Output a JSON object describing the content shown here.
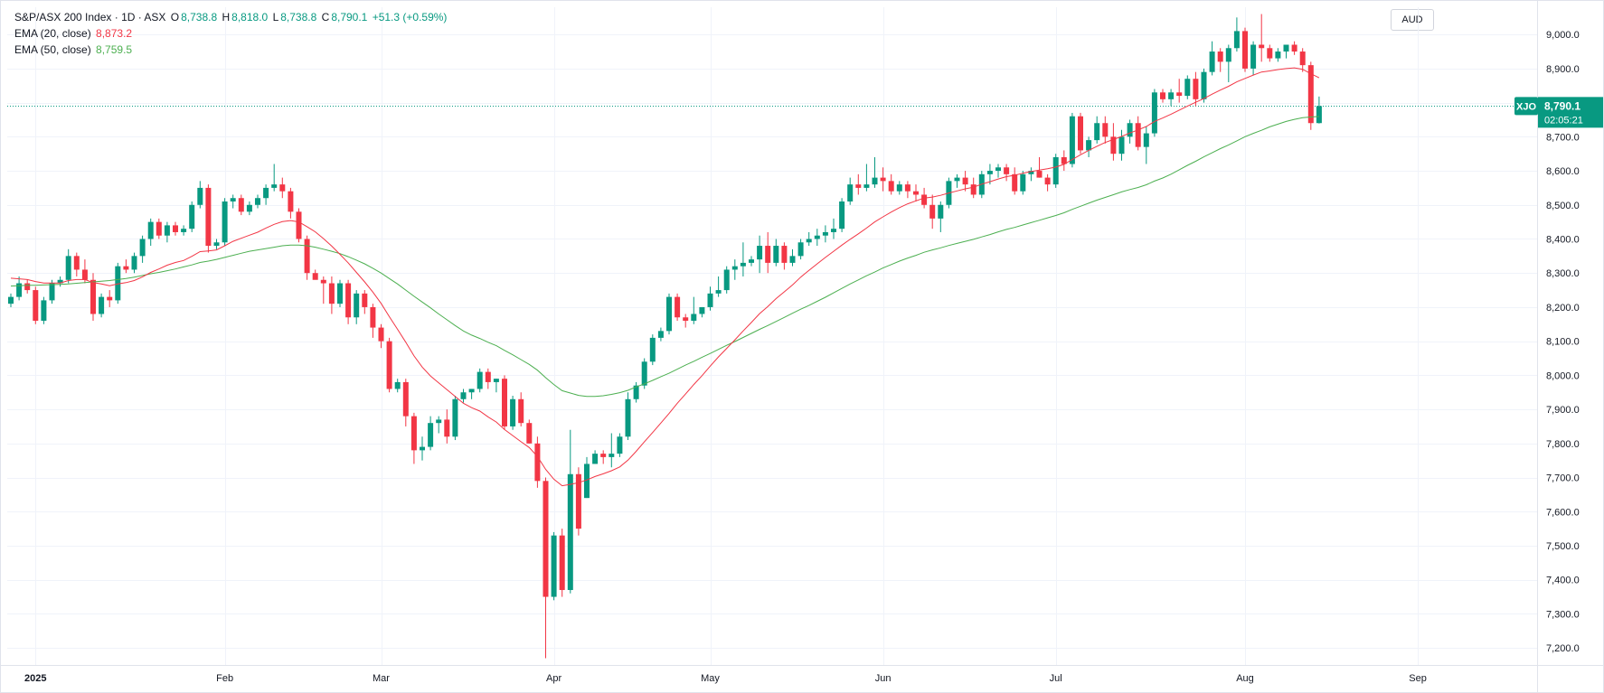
{
  "legend": {
    "title": "S&P/ASX 200 Index · 1D · ASX",
    "o_label": "O",
    "o_value": "8,738.8",
    "h_label": "H",
    "h_value": "8,818.0",
    "l_label": "L",
    "l_value": "8,738.8",
    "c_label": "C",
    "c_value": "8,790.1",
    "change": "+51.3 (+0.59%)",
    "ema20_label": "EMA (20, close)",
    "ema20_value": "8,873.2",
    "ema50_label": "EMA (50, close)",
    "ema50_value": "8,759.5"
  },
  "currency": "AUD",
  "price_tag": {
    "symbol": "XJO",
    "price": "8,790.1",
    "countdown": "02:05:21"
  },
  "colors": {
    "up": "#089981",
    "down": "#f23645",
    "ema20": "#f23645",
    "ema50": "#4caf50",
    "grid": "#f0f3fa",
    "axis_text": "#131722"
  },
  "chart_data": {
    "type": "candlestick",
    "title": "S&P/ASX 200 Index · 1D · ASX",
    "ylim": [
      7150,
      9080
    ],
    "y_ticks": [
      7200,
      7300,
      7400,
      7500,
      7600,
      7700,
      7800,
      7900,
      8000,
      8100,
      8200,
      8300,
      8400,
      8500,
      8600,
      8700,
      8800,
      8900,
      9000
    ],
    "y_tick_labels": [
      "7,200.0",
      "7,300.0",
      "7,400.0",
      "7,500.0",
      "7,600.0",
      "7,700.0",
      "7,800.0",
      "7,900.0",
      "8,000.0",
      "8,100.0",
      "8,200.0",
      "8,300.0",
      "8,400.0",
      "8,500.0",
      "8,600.0",
      "8,700.0",
      "8,800.0",
      "8,900.0",
      "9,000.0"
    ],
    "x_labels": [
      {
        "label": "2025",
        "index": 3
      },
      {
        "label": "Feb",
        "index": 26
      },
      {
        "label": "Mar",
        "index": 45
      },
      {
        "label": "Apr",
        "index": 66
      },
      {
        "label": "May",
        "index": 85
      },
      {
        "label": "Jun",
        "index": 106
      },
      {
        "label": "Jul",
        "index": 127
      },
      {
        "label": "Aug",
        "index": 150
      },
      {
        "label": "Sep",
        "index": 171
      }
    ],
    "ohlc": [
      [
        8210,
        8240,
        8200,
        8230
      ],
      [
        8230,
        8290,
        8220,
        8270
      ],
      [
        8270,
        8280,
        8240,
        8250
      ],
      [
        8250,
        8260,
        8150,
        8160
      ],
      [
        8160,
        8230,
        8150,
        8220
      ],
      [
        8220,
        8280,
        8210,
        8270
      ],
      [
        8270,
        8290,
        8260,
        8280
      ],
      [
        8280,
        8370,
        8270,
        8350
      ],
      [
        8350,
        8360,
        8290,
        8310
      ],
      [
        8310,
        8340,
        8270,
        8280
      ],
      [
        8280,
        8300,
        8160,
        8180
      ],
      [
        8180,
        8240,
        8170,
        8230
      ],
      [
        8230,
        8250,
        8200,
        8220
      ],
      [
        8220,
        8330,
        8210,
        8320
      ],
      [
        8320,
        8340,
        8300,
        8310
      ],
      [
        8310,
        8360,
        8300,
        8350
      ],
      [
        8350,
        8410,
        8330,
        8400
      ],
      [
        8400,
        8460,
        8380,
        8450
      ],
      [
        8450,
        8460,
        8400,
        8410
      ],
      [
        8410,
        8450,
        8390,
        8440
      ],
      [
        8440,
        8450,
        8410,
        8420
      ],
      [
        8420,
        8440,
        8410,
        8430
      ],
      [
        8430,
        8510,
        8420,
        8500
      ],
      [
        8500,
        8570,
        8490,
        8550
      ],
      [
        8550,
        8560,
        8360,
        8380
      ],
      [
        8380,
        8400,
        8370,
        8390
      ],
      [
        8390,
        8520,
        8380,
        8510
      ],
      [
        8510,
        8530,
        8490,
        8520
      ],
      [
        8520,
        8530,
        8470,
        8480
      ],
      [
        8480,
        8510,
        8470,
        8500
      ],
      [
        8500,
        8530,
        8490,
        8520
      ],
      [
        8520,
        8560,
        8500,
        8550
      ],
      [
        8550,
        8620,
        8540,
        8560
      ],
      [
        8560,
        8580,
        8520,
        8540
      ],
      [
        8540,
        8550,
        8460,
        8480
      ],
      [
        8480,
        8490,
        8390,
        8400
      ],
      [
        8400,
        8410,
        8280,
        8300
      ],
      [
        8300,
        8310,
        8290,
        8280
      ],
      [
        8280,
        8290,
        8210,
        8270
      ],
      [
        8270,
        8290,
        8180,
        8210
      ],
      [
        8210,
        8280,
        8200,
        8270
      ],
      [
        8270,
        8280,
        8150,
        8170
      ],
      [
        8170,
        8250,
        8150,
        8240
      ],
      [
        8240,
        8250,
        8180,
        8200
      ],
      [
        8200,
        8210,
        8110,
        8140
      ],
      [
        8140,
        8150,
        8080,
        8100
      ],
      [
        8100,
        8110,
        7950,
        7960
      ],
      [
        7960,
        7990,
        7950,
        7980
      ],
      [
        7980,
        7990,
        7850,
        7880
      ],
      [
        7880,
        7890,
        7740,
        7780
      ],
      [
        7780,
        7820,
        7750,
        7790
      ],
      [
        7790,
        7880,
        7780,
        7860
      ],
      [
        7860,
        7880,
        7830,
        7870
      ],
      [
        7870,
        7900,
        7800,
        7820
      ],
      [
        7820,
        7940,
        7810,
        7930
      ],
      [
        7930,
        7960,
        7920,
        7950
      ],
      [
        7950,
        7960,
        7930,
        7960
      ],
      [
        7960,
        8020,
        7950,
        8010
      ],
      [
        8010,
        8020,
        7960,
        7980
      ],
      [
        7980,
        7990,
        7950,
        7990
      ],
      [
        7990,
        8000,
        7840,
        7850
      ],
      [
        7850,
        7940,
        7840,
        7930
      ],
      [
        7930,
        7950,
        7850,
        7860
      ],
      [
        7860,
        7870,
        7800,
        7800
      ],
      [
        7800,
        7820,
        7670,
        7690
      ],
      [
        7690,
        7700,
        7170,
        7350
      ],
      [
        7350,
        7540,
        7340,
        7530
      ],
      [
        7530,
        7550,
        7350,
        7370
      ],
      [
        7370,
        7840,
        7360,
        7710
      ],
      [
        7710,
        7730,
        7530,
        7550
      ],
      [
        7640,
        7760,
        7640,
        7740
      ],
      [
        7740,
        7780,
        7740,
        7770
      ],
      [
        7770,
        7780,
        7740,
        7760
      ],
      [
        7760,
        7830,
        7730,
        7770
      ],
      [
        7770,
        7830,
        7760,
        7820
      ],
      [
        7820,
        7950,
        7810,
        7930
      ],
      [
        7930,
        7980,
        7920,
        7970
      ],
      [
        7970,
        8050,
        7960,
        8040
      ],
      [
        8040,
        8120,
        8030,
        8110
      ],
      [
        8110,
        8140,
        8100,
        8130
      ],
      [
        8130,
        8240,
        8120,
        8230
      ],
      [
        8230,
        8240,
        8160,
        8170
      ],
      [
        8170,
        8180,
        8140,
        8160
      ],
      [
        8160,
        8230,
        8150,
        8180
      ],
      [
        8180,
        8200,
        8170,
        8200
      ],
      [
        8200,
        8260,
        8190,
        8240
      ],
      [
        8240,
        8290,
        8230,
        8250
      ],
      [
        8250,
        8320,
        8240,
        8310
      ],
      [
        8310,
        8340,
        8280,
        8320
      ],
      [
        8320,
        8390,
        8290,
        8330
      ],
      [
        8330,
        8350,
        8320,
        8340
      ],
      [
        8340,
        8410,
        8300,
        8380
      ],
      [
        8380,
        8420,
        8300,
        8330
      ],
      [
        8330,
        8400,
        8320,
        8380
      ],
      [
        8380,
        8390,
        8310,
        8330
      ],
      [
        8330,
        8370,
        8320,
        8350
      ],
      [
        8350,
        8400,
        8340,
        8390
      ],
      [
        8390,
        8420,
        8380,
        8400
      ],
      [
        8400,
        8430,
        8380,
        8410
      ],
      [
        8410,
        8440,
        8390,
        8420
      ],
      [
        8420,
        8460,
        8400,
        8430
      ],
      [
        8430,
        8520,
        8420,
        8510
      ],
      [
        8510,
        8580,
        8500,
        8560
      ],
      [
        8560,
        8590,
        8530,
        8550
      ],
      [
        8550,
        8620,
        8540,
        8560
      ],
      [
        8560,
        8640,
        8550,
        8580
      ],
      [
        8580,
        8610,
        8540,
        8570
      ],
      [
        8570,
        8590,
        8530,
        8540
      ],
      [
        8540,
        8570,
        8530,
        8560
      ],
      [
        8560,
        8570,
        8520,
        8540
      ],
      [
        8540,
        8560,
        8510,
        8530
      ],
      [
        8530,
        8550,
        8490,
        8500
      ],
      [
        8500,
        8530,
        8430,
        8460
      ],
      [
        8460,
        8510,
        8420,
        8500
      ],
      [
        8500,
        8580,
        8490,
        8570
      ],
      [
        8570,
        8590,
        8550,
        8580
      ],
      [
        8580,
        8600,
        8540,
        8560
      ],
      [
        8560,
        8580,
        8520,
        8530
      ],
      [
        8530,
        8600,
        8520,
        8590
      ],
      [
        8590,
        8620,
        8560,
        8600
      ],
      [
        8600,
        8620,
        8580,
        8610
      ],
      [
        8610,
        8620,
        8570,
        8590
      ],
      [
        8590,
        8610,
        8530,
        8540
      ],
      [
        8540,
        8600,
        8530,
        8590
      ],
      [
        8590,
        8610,
        8570,
        8600
      ],
      [
        8600,
        8640,
        8580,
        8580
      ],
      [
        8580,
        8590,
        8540,
        8560
      ],
      [
        8560,
        8650,
        8550,
        8640
      ],
      [
        8640,
        8660,
        8600,
        8620
      ],
      [
        8620,
        8770,
        8610,
        8760
      ],
      [
        8760,
        8770,
        8650,
        8660
      ],
      [
        8660,
        8700,
        8640,
        8690
      ],
      [
        8690,
        8760,
        8680,
        8740
      ],
      [
        8740,
        8760,
        8680,
        8700
      ],
      [
        8700,
        8740,
        8630,
        8650
      ],
      [
        8650,
        8720,
        8630,
        8700
      ],
      [
        8700,
        8750,
        8680,
        8740
      ],
      [
        8740,
        8760,
        8660,
        8670
      ],
      [
        8670,
        8730,
        8620,
        8710
      ],
      [
        8710,
        8840,
        8700,
        8830
      ],
      [
        8830,
        8840,
        8800,
        8810
      ],
      [
        8810,
        8840,
        8790,
        8830
      ],
      [
        8830,
        8870,
        8800,
        8820
      ],
      [
        8820,
        8880,
        8810,
        8870
      ],
      [
        8870,
        8890,
        8790,
        8810
      ],
      [
        8810,
        8900,
        8800,
        8890
      ],
      [
        8890,
        8980,
        8880,
        8950
      ],
      [
        8950,
        8960,
        8890,
        8920
      ],
      [
        8920,
        8970,
        8860,
        8960
      ],
      [
        8960,
        9050,
        8950,
        9010
      ],
      [
        9010,
        9020,
        8890,
        8900
      ],
      [
        8900,
        8980,
        8880,
        8970
      ],
      [
        8970,
        9060,
        8920,
        8960
      ],
      [
        8960,
        8970,
        8920,
        8930
      ],
      [
        8930,
        8960,
        8920,
        8950
      ],
      [
        8950,
        8970,
        8930,
        8970
      ],
      [
        8970,
        8980,
        8940,
        8950
      ],
      [
        8950,
        8960,
        8890,
        8910
      ],
      [
        8910,
        8920,
        8720,
        8740
      ],
      [
        8740,
        8818,
        8738.8,
        8790.1
      ]
    ],
    "ema20": [
      8285,
      8283,
      8281,
      8275,
      8271,
      8271,
      8271,
      8278,
      8281,
      8281,
      8272,
      8268,
      8263,
      8268,
      8272,
      8278,
      8289,
      8302,
      8312,
      8323,
      8331,
      8337,
      8349,
      8363,
      8365,
      8368,
      8380,
      8393,
      8402,
      8411,
      8420,
      8432,
      8443,
      8451,
      8454,
      8450,
      8436,
      8421,
      8401,
      8379,
      8355,
      8330,
      8302,
      8274,
      8244,
      8211,
      8172,
      8135,
      8097,
      8057,
      8024,
      7998,
      7978,
      7958,
      7938,
      7918,
      7905,
      7895,
      7878,
      7863,
      7841,
      7823,
      7805,
      7788,
      7762,
      7724,
      7695,
      7676,
      7680,
      7685,
      7693,
      7703,
      7711,
      7720,
      7731,
      7751,
      7777,
      7805,
      7832,
      7860,
      7888,
      7918,
      7945,
      7973,
      7999,
      8027,
      8054,
      8079,
      8104,
      8130,
      8155,
      8181,
      8202,
      8225,
      8245,
      8265,
      8288,
      8308,
      8327,
      8346,
      8364,
      8382,
      8399,
      8415,
      8432,
      8450,
      8465,
      8479,
      8492,
      8503,
      8512,
      8520,
      8523,
      8528,
      8535,
      8541,
      8547,
      8552,
      8561,
      8568,
      8576,
      8583,
      8587,
      8593,
      8598,
      8602,
      8606,
      8611,
      8619,
      8633,
      8647,
      8660,
      8672,
      8683,
      8692,
      8701,
      8711,
      8720,
      8730,
      8745,
      8755,
      8766,
      8778,
      8790,
      8801,
      8812,
      8825,
      8837,
      8848,
      8861,
      8871,
      8881,
      8890,
      8893,
      8897,
      8900,
      8902,
      8898,
      8885,
      8873
    ],
    "ema50": [
      8262,
      8263,
      8264,
      8264,
      8265,
      8266,
      8267,
      8268,
      8270,
      8272,
      8274,
      8276,
      8278,
      8281,
      8284,
      8288,
      8293,
      8298,
      8302,
      8307,
      8312,
      8318,
      8324,
      8331,
      8335,
      8340,
      8346,
      8352,
      8358,
      8364,
      8368,
      8372,
      8376,
      8380,
      8382,
      8382,
      8380,
      8376,
      8370,
      8364,
      8357,
      8348,
      8338,
      8327,
      8314,
      8300,
      8284,
      8268,
      8250,
      8232,
      8215,
      8198,
      8180,
      8163,
      8146,
      8130,
      8118,
      8108,
      8097,
      8087,
      8073,
      8060,
      8046,
      8032,
      8015,
      7993,
      7973,
      7955,
      7948,
      7941,
      7938,
      7938,
      7940,
      7944,
      7949,
      7956,
      7966,
      7975,
      7985,
      7996,
      8006,
      8018,
      8030,
      8041,
      8053,
      8064,
      8076,
      8088,
      8099,
      8111,
      8123,
      8135,
      8146,
      8158,
      8170,
      8182,
      8194,
      8205,
      8217,
      8229,
      8242,
      8255,
      8268,
      8280,
      8292,
      8303,
      8315,
      8325,
      8335,
      8344,
      8352,
      8361,
      8368,
      8374,
      8381,
      8387,
      8393,
      8399,
      8406,
      8413,
      8421,
      8428,
      8434,
      8441,
      8448,
      8455,
      8462,
      8469,
      8477,
      8487,
      8496,
      8505,
      8514,
      8522,
      8530,
      8538,
      8545,
      8551,
      8559,
      8570,
      8579,
      8590,
      8603,
      8616,
      8628,
      8641,
      8653,
      8665,
      8676,
      8688,
      8700,
      8710,
      8719,
      8729,
      8737,
      8745,
      8751,
      8756,
      8758,
      8759.5
    ],
    "last_price": 8790.1
  }
}
